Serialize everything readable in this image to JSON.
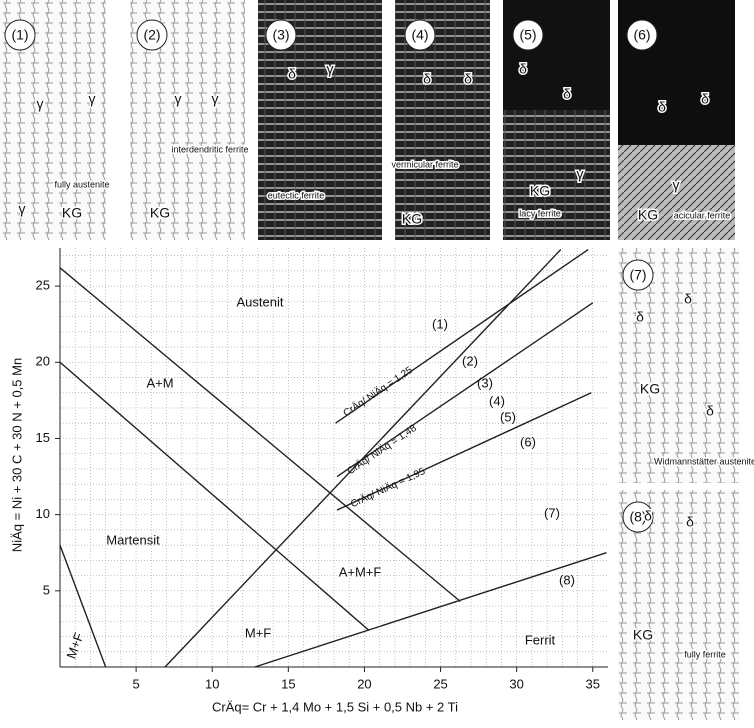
{
  "chart_data": {
    "type": "line",
    "x_label": "CrÄq= Cr + 1,4 Mo + 1,5 Si + 0,5 Nb + 2 Ti",
    "y_label": "NiÄq = Ni + 30 C + 30 N + 0,5 Mn",
    "xlim": [
      0,
      36
    ],
    "ylim": [
      0,
      27.5
    ],
    "xticks": [
      5,
      10,
      15,
      20,
      25,
      30,
      35
    ],
    "yticks": [
      5,
      10,
      15,
      20,
      25
    ],
    "grid": true,
    "grid_step": 1,
    "series": [
      {
        "color": "#222222",
        "x": [
          0,
          26.3
        ],
        "values": [
          26.2,
          4.3
        ]
      },
      {
        "color": "#222222",
        "x": [
          0,
          20.3
        ],
        "values": [
          20.0,
          2.4
        ]
      },
      {
        "color": "#222222",
        "x": [
          0,
          3.0
        ],
        "values": [
          8.0,
          0
        ]
      },
      {
        "color": "#222222",
        "x": [
          12.8,
          35.9
        ],
        "values": [
          0,
          7.5
        ]
      },
      {
        "color": "#222222",
        "x": [
          6.9,
          32.9
        ],
        "values": [
          0,
          27.4
        ]
      },
      {
        "color": "#222222",
        "x": [
          18.1,
          34.7
        ],
        "values": [
          16.0,
          27.4
        ]
      },
      {
        "color": "#222222",
        "x": [
          18.2,
          35.0
        ],
        "values": [
          12.5,
          23.9
        ]
      },
      {
        "color": "#222222",
        "x": [
          18.2,
          34.9
        ],
        "values": [
          10.3,
          18.0
        ]
      }
    ],
    "regions": [
      "Austenit",
      "A+M",
      "Martensit",
      "A+M+F",
      "M+F",
      "Ferrit",
      "M+F"
    ],
    "numbers": [
      "(1)",
      "(2)",
      "(3)",
      "(4)",
      "(5)",
      "(6)",
      "(7)",
      "(8)"
    ],
    "line_labels": [
      "CrÄq/ NiÄq = 1,25",
      "CrÄq/ NiÄq = 1,48",
      "CrÄq/ NiÄq = 1,95"
    ]
  },
  "micrographs": [
    {
      "label": "(1)",
      "notes": [
        "γ",
        "γ",
        "fully austenite",
        "KG",
        "γ"
      ]
    },
    {
      "label": "(2)",
      "notes": [
        "γ",
        "γ",
        "interdendritic ferrite",
        "KG"
      ]
    },
    {
      "label": "(3)",
      "notes": [
        "δ",
        "γ",
        "eutectic ferrite"
      ]
    },
    {
      "label": "(4)",
      "notes": [
        "δ",
        "δ",
        "vermicular ferrite",
        "KG"
      ]
    },
    {
      "label": "(5)",
      "notes": [
        "δ",
        "δ",
        "KG",
        "lacy ferrite",
        "γ"
      ]
    },
    {
      "label": "(6)",
      "notes": [
        "δ",
        "δ",
        "γ",
        "KG",
        "acicular ferrite"
      ]
    },
    {
      "label": "(7)",
      "notes": [
        "δ",
        "δ",
        "KG",
        "δ",
        "Widmannstätter austenite"
      ]
    },
    {
      "label": "(8)",
      "notes": [
        "δ",
        "δ",
        "KG",
        "fully ferrite"
      ]
    }
  ]
}
